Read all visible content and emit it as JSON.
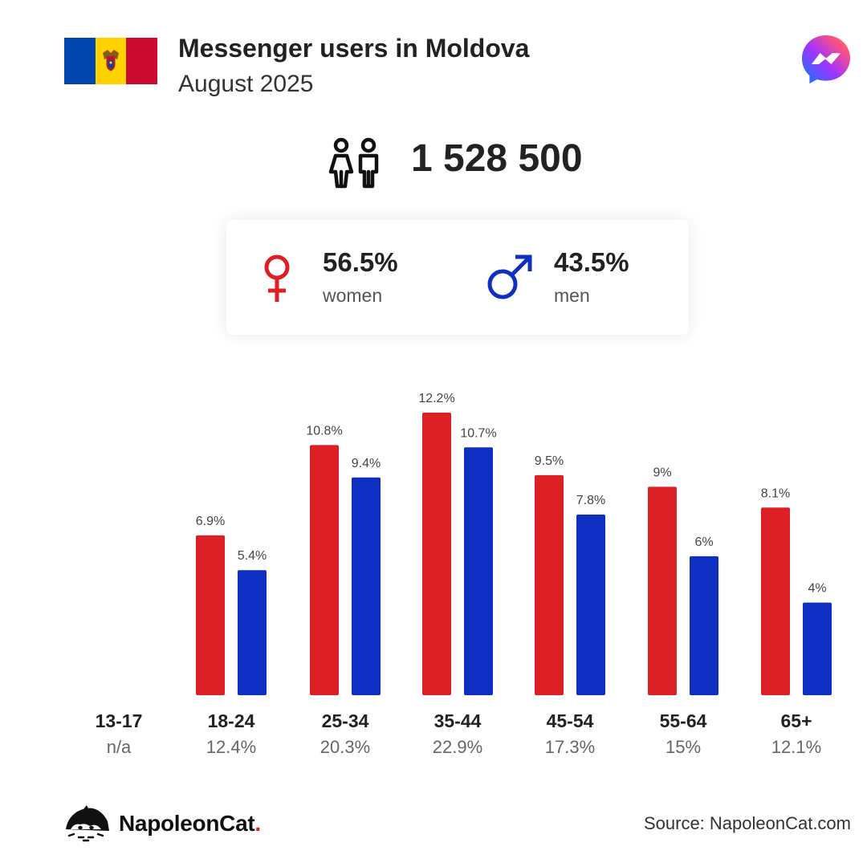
{
  "header": {
    "title": "Messenger users in Moldova",
    "subtitle": "August 2025",
    "flag_colors": [
      "#0046ae",
      "#ffd200",
      "#cc092f"
    ]
  },
  "total": {
    "value": "1 528 500"
  },
  "gender": {
    "women": {
      "pct": "56.5%",
      "label": "women"
    },
    "men": {
      "pct": "43.5%",
      "label": "men"
    }
  },
  "colors": {
    "women": "#dd1f26",
    "men": "#0f2ec2"
  },
  "chart_data": {
    "type": "bar",
    "categories": [
      "13-17",
      "18-24",
      "25-34",
      "35-44",
      "45-54",
      "55-64",
      "65+"
    ],
    "category_shares": [
      "n/a",
      "12.4%",
      "20.3%",
      "22.9%",
      "17.3%",
      "15%",
      "12.1%"
    ],
    "series": [
      {
        "values": [
          null,
          6.9,
          10.8,
          12.2,
          9.5,
          9,
          8.1
        ],
        "labels": [
          "",
          "6.9%",
          "10.8%",
          "12.2%",
          "9.5%",
          "9%",
          "8.1%"
        ],
        "color": "#dd1f26"
      },
      {
        "values": [
          null,
          5.4,
          9.4,
          10.7,
          7.8,
          6,
          4
        ],
        "labels": [
          "",
          "5.4%",
          "9.4%",
          "10.7%",
          "7.8%",
          "6%",
          "4%"
        ],
        "color": "#0f2ec2"
      }
    ],
    "ylim": [
      0,
      12.2
    ],
    "grid": false,
    "legend": "none"
  },
  "footer": {
    "brand": "NapoleonCat",
    "brand_dot": ".",
    "source": "Source: NapoleonCat.com"
  }
}
